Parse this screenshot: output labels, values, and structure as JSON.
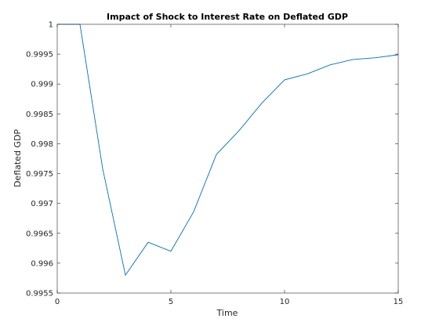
{
  "chart_data": {
    "type": "line",
    "title": "Impact of Shock to Interest Rate on Deflated GDP",
    "xlabel": "Time",
    "ylabel": "Deflated GDP",
    "xlim": [
      0,
      15
    ],
    "ylim": [
      0.9955,
      1.0
    ],
    "x_ticks": [
      0,
      5,
      10,
      15
    ],
    "x_tick_labels": [
      "0",
      "5",
      "10",
      "15"
    ],
    "y_ticks": [
      0.9955,
      0.996,
      0.9965,
      0.997,
      0.9975,
      0.998,
      0.9985,
      0.999,
      0.9995,
      1.0
    ],
    "y_tick_labels": [
      "0.9955",
      "0.996",
      "0.9965",
      "0.997",
      "0.9975",
      "0.998",
      "0.9985",
      "0.999",
      "0.9995",
      "1"
    ],
    "grid": false,
    "series": [
      {
        "color": "#0072BD",
        "x": [
          0,
          1,
          2,
          3,
          4,
          5,
          6,
          7,
          8,
          9,
          10,
          11,
          12,
          13,
          14,
          15
        ],
        "values": [
          1.0,
          1.0,
          0.99758,
          0.9958,
          0.99635,
          0.9962,
          0.99686,
          0.99782,
          0.99822,
          0.99868,
          0.99907,
          0.99917,
          0.99932,
          0.99941,
          0.99944,
          0.99949
        ]
      }
    ]
  }
}
